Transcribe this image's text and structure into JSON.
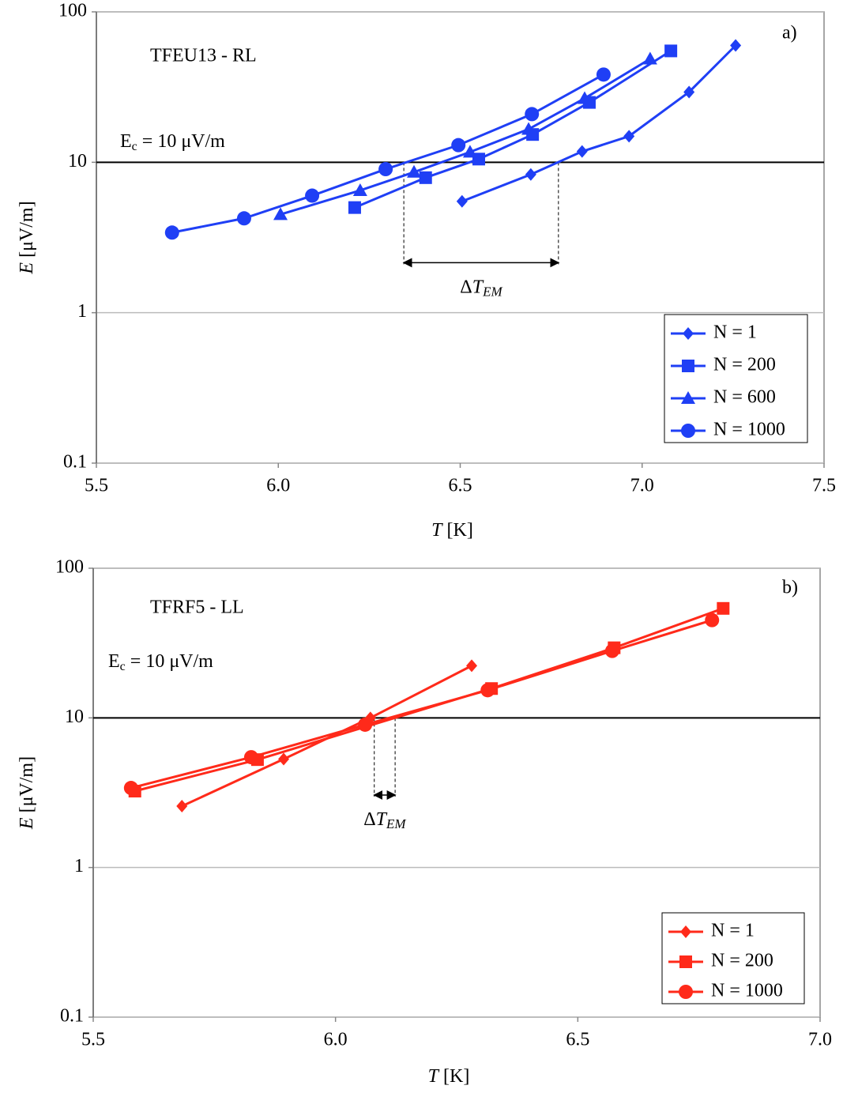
{
  "chart_data": [
    {
      "type": "line",
      "panel_label": "a)",
      "title": "TFEU13 - RL",
      "xlabel": {
        "var": "T",
        "unit": " [K]"
      },
      "ylabel": {
        "var": "E",
        "unit": " [μV/m]"
      },
      "ec_label": {
        "main": "E",
        "sub": "c",
        "rest": " = 10 μV/m"
      },
      "delta_label": {
        "delta": "Δ",
        "var": "T",
        "sub": "EM"
      },
      "delta_t": {
        "x": [
          6.345,
          6.77
        ],
        "y": 2.15
      },
      "xlim": [
        5.5,
        7.5
      ],
      "xticks": [
        5.5,
        {
          "value": 6,
          "label": "6.0"
        },
        6.5,
        {
          "value": 7,
          "label": "7.0"
        },
        7.5
      ],
      "ylim": [
        0.1,
        100
      ],
      "yticks": [
        0.1,
        1,
        10,
        100
      ],
      "log_y": true,
      "hline": 10,
      "grid": true,
      "legend": "lower right",
      "series": [
        {
          "name": "N = 1",
          "color": "#1f3ff5",
          "marker": "diamond",
          "x": [
            6.505,
            6.694,
            6.835,
            6.964,
            7.129,
            7.257
          ],
          "values": [
            5.5,
            8.3,
            11.8,
            14.9,
            29.3,
            59.8
          ]
        },
        {
          "name": "N = 200",
          "color": "#1f3ff5",
          "marker": "square",
          "x": [
            6.21,
            6.405,
            6.551,
            6.699,
            6.855,
            7.079
          ],
          "values": [
            5.0,
            7.9,
            10.5,
            15.3,
            25,
            55
          ]
        },
        {
          "name": "N = 600",
          "color": "#1f3ff5",
          "marker": "triangle",
          "x": [
            6.006,
            6.225,
            6.373,
            6.527,
            6.688,
            6.842,
            7.022
          ],
          "values": [
            4.5,
            6.5,
            8.6,
            11.7,
            16.6,
            26.6,
            48.7
          ]
        },
        {
          "name": "N = 1000",
          "color": "#1f3ff5",
          "marker": "circle",
          "x": [
            5.708,
            5.906,
            6.093,
            6.295,
            6.495,
            6.697,
            6.894
          ],
          "values": [
            3.41,
            4.24,
            6.0,
            9.0,
            13.0,
            20.9,
            38.3
          ]
        }
      ]
    },
    {
      "type": "line",
      "panel_label": "b)",
      "title": "TFRF5 - LL",
      "xlabel": {
        "var": "T",
        "unit": " [K]"
      },
      "ylabel": {
        "var": "E",
        "unit": " [μV/m]"
      },
      "ec_label": {
        "main": "E",
        "sub": "c",
        "rest": " = 10 μV/m"
      },
      "delta_label": {
        "delta": "Δ",
        "var": "T",
        "sub": "EM"
      },
      "delta_t": {
        "x": [
          6.08,
          6.123
        ],
        "y": 3.05
      },
      "xlim": [
        5.5,
        7.0
      ],
      "xticks": [
        5.5,
        {
          "value": 6,
          "label": "6.0"
        },
        6.5,
        {
          "value": 7,
          "label": "7.0"
        }
      ],
      "ylim": [
        0.1,
        100
      ],
      "yticks": [
        0.1,
        1,
        10,
        100
      ],
      "log_y": true,
      "hline": 10,
      "grid": true,
      "legend": "lower right",
      "series": [
        {
          "name": "N = 1",
          "color": "#ff2a1a",
          "marker": "diamond",
          "x": [
            5.683,
            5.893,
            6.072,
            6.281
          ],
          "values": [
            2.57,
            5.3,
            10,
            22.3
          ]
        },
        {
          "name": "N = 200",
          "color": "#ff2a1a",
          "marker": "square",
          "x": [
            5.586,
            5.839,
            6.322,
            6.575,
            6.8
          ],
          "values": [
            3.24,
            5.26,
            15.7,
            29.4,
            53.9
          ]
        },
        {
          "name": "N = 1000",
          "color": "#ff2a1a",
          "marker": "circle",
          "x": [
            5.578,
            5.826,
            6.061,
            6.314,
            6.571,
            6.777
          ],
          "values": [
            3.4,
            5.46,
            9.0,
            15.3,
            28,
            45
          ]
        }
      ]
    }
  ]
}
